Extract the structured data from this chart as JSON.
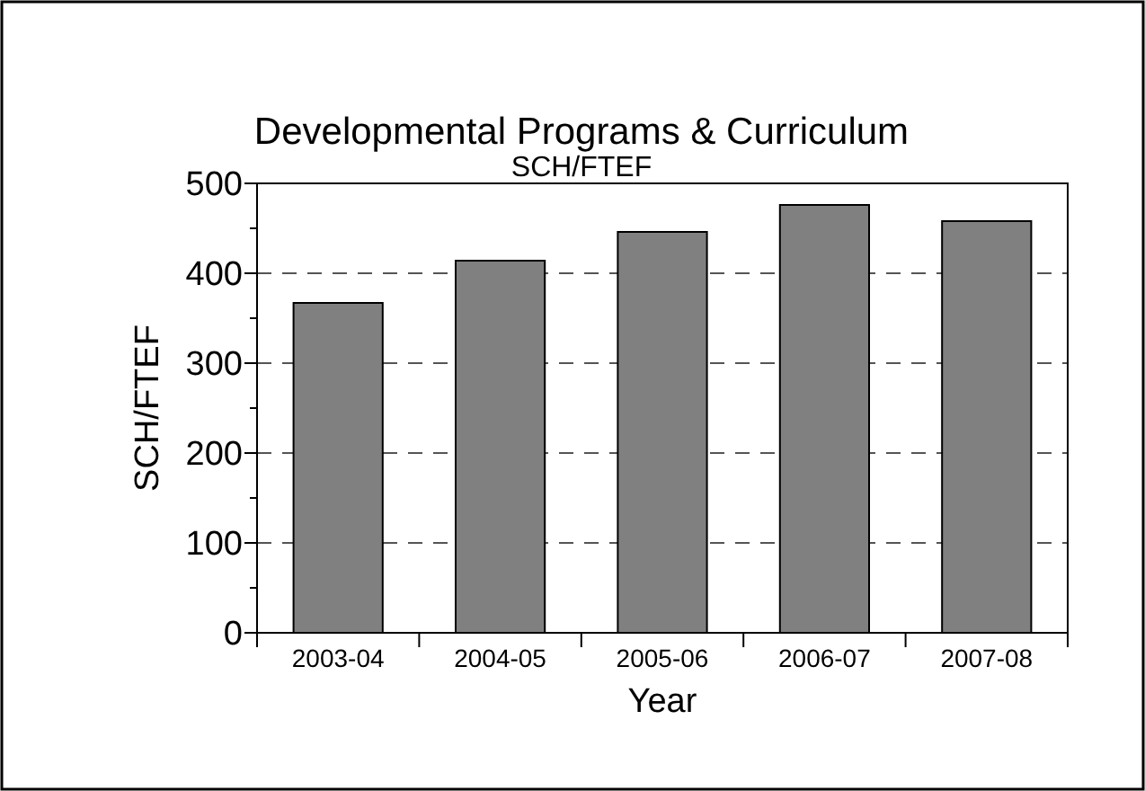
{
  "chart_data": {
    "type": "bar",
    "title": "Developmental Programs & Curriculum",
    "subtitle": "SCH/FTEF",
    "xlabel": "Year",
    "ylabel": "SCH/FTEF",
    "categories": [
      "2003-04",
      "2004-05",
      "2005-06",
      "2006-07",
      "2007-08"
    ],
    "series": [
      {
        "color": "#808080",
        "values": [
          367,
          414,
          446,
          476,
          458
        ]
      }
    ],
    "ylim": [
      0,
      500
    ],
    "yticks": [
      0,
      {
        "value": 50,
        "label": null
      },
      100,
      {
        "value": 150,
        "label": null
      },
      200,
      {
        "value": 250,
        "label": null
      },
      300,
      {
        "value": 350,
        "label": null
      },
      400,
      {
        "value": 450,
        "label": null
      },
      500
    ],
    "grid": "y"
  }
}
